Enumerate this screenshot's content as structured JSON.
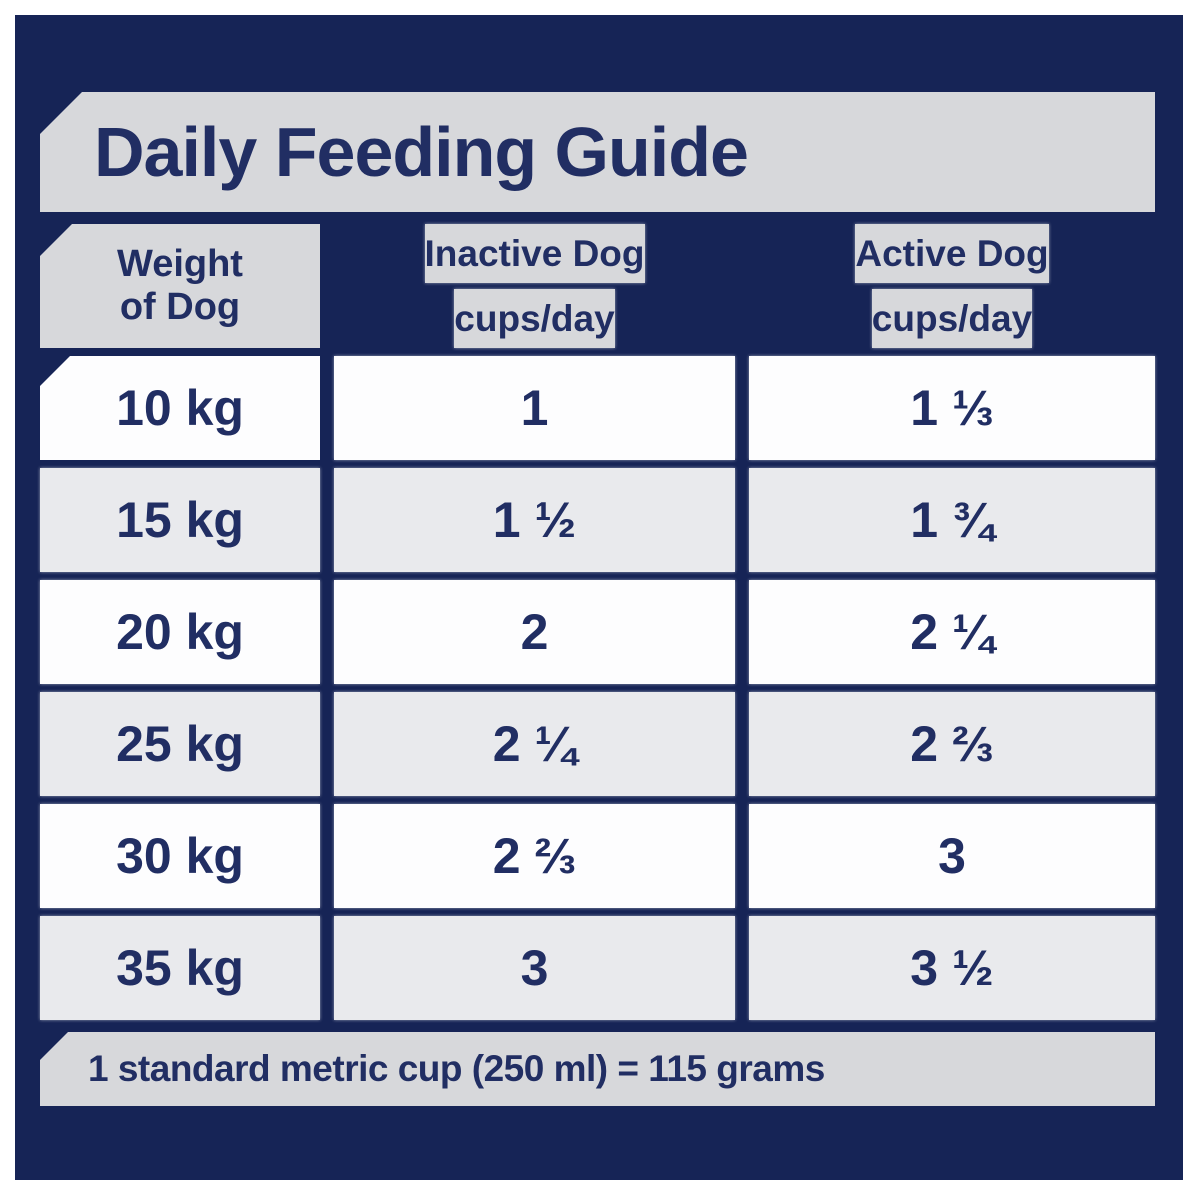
{
  "title": {
    "text": "Daily Feeding Guide"
  },
  "table": {
    "weight_header": {
      "line1": "Weight",
      "line2": "of Dog"
    },
    "col_headers": [
      {
        "label": "Inactive Dog",
        "unit": "cups/day"
      },
      {
        "label": "Active Dog",
        "unit": "cups/day"
      }
    ],
    "rows": [
      {
        "weight": "10 kg",
        "inactive": "1",
        "active": "1 ⅓"
      },
      {
        "weight": "15 kg",
        "inactive": "1 ½",
        "active": "1 ¾"
      },
      {
        "weight": "20 kg",
        "inactive": "2",
        "active": "2 ¼"
      },
      {
        "weight": "25 kg",
        "inactive": "2 ¼",
        "active": "2 ⅔"
      },
      {
        "weight": "30 kg",
        "inactive": "2 ⅔",
        "active": "3"
      },
      {
        "weight": "35 kg",
        "inactive": "3",
        "active": "3 ½"
      }
    ]
  },
  "footer": {
    "text": "1 standard metric cup (250 ml) = 115 grams"
  },
  "colors": {
    "panel_navy": "#162456",
    "text_navy": "#212E63",
    "header_gray": "#D7D8DB",
    "alt_row_gray": "#E9EAED",
    "row_white": "#FDFDFE",
    "page_white": "#FFFFFF"
  }
}
